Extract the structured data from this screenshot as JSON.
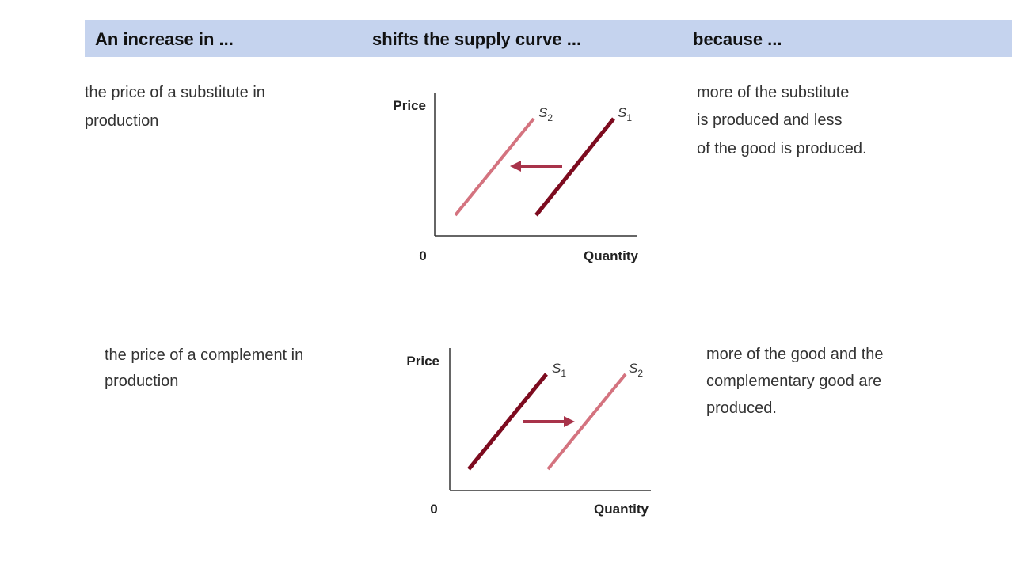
{
  "header": {
    "columns": [
      "An increase in ...",
      "shifts the supply curve ...",
      "because ..."
    ]
  },
  "rows": [
    {
      "cause": [
        "the price of a substitute in",
        "production"
      ],
      "diagram": {
        "y_axis": "Price",
        "x_axis": "Quantity",
        "origin": "0",
        "curves": [
          {
            "letter": "S",
            "sub": "2"
          },
          {
            "letter": "S",
            "sub": "1"
          }
        ]
      },
      "effect": [
        "more of the substitute",
        "is produced and less",
        "of the good is produced."
      ]
    },
    {
      "cause": [
        "the price of a complement in",
        "production"
      ],
      "diagram": {
        "y_axis": "Price",
        "x_axis": "Quantity",
        "origin": "0",
        "curves": [
          {
            "letter": "S",
            "sub": "1"
          },
          {
            "letter": "S",
            "sub": "2"
          }
        ]
      },
      "effect": [
        "more of the good and the",
        "complementary good are",
        "produced."
      ]
    }
  ]
}
